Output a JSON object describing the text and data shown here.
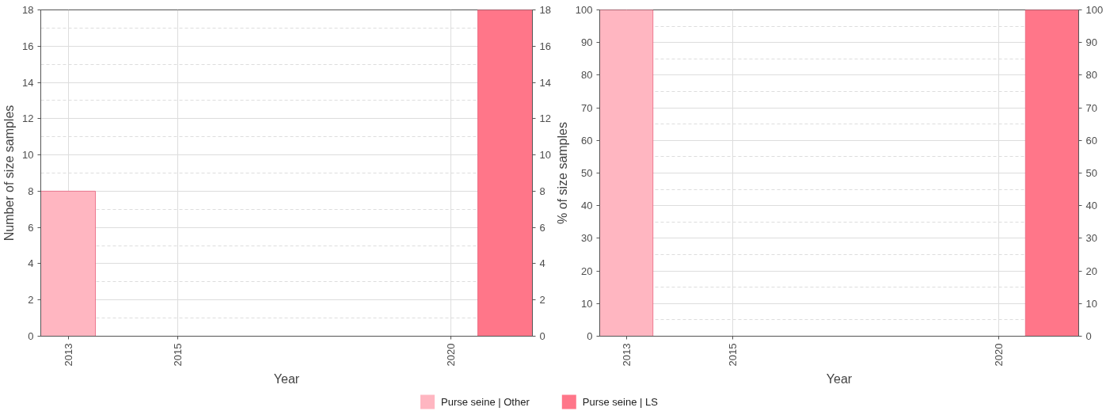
{
  "chart_data": [
    {
      "type": "bar",
      "xlabel": "Year",
      "ylabel": "Number of size samples",
      "categories": [
        "2013",
        null,
        "2015",
        null,
        null,
        null,
        null,
        "2020",
        null
      ],
      "ylim": [
        0,
        18
      ],
      "yticks": [
        0,
        2,
        4,
        6,
        8,
        10,
        12,
        14,
        16,
        18
      ],
      "y2lim": [
        0,
        18
      ],
      "y2ticks": [
        0,
        2,
        4,
        6,
        8,
        10,
        12,
        14,
        16,
        18
      ],
      "grid": true,
      "legend": "bottom",
      "series": [
        {
          "name": "Purse seine | Other",
          "color": "#ffb6c1",
          "values": [
            8,
            null,
            null,
            null,
            null,
            null,
            null,
            null,
            null
          ]
        },
        {
          "name": "Purse seine | LS",
          "color": "#ff7689",
          "values": [
            null,
            null,
            null,
            null,
            null,
            null,
            null,
            null,
            18
          ]
        }
      ]
    },
    {
      "type": "bar",
      "xlabel": "Year",
      "ylabel": "% of size samples",
      "categories": [
        "2013",
        null,
        "2015",
        null,
        null,
        null,
        null,
        "2020",
        null
      ],
      "ylim": [
        0,
        100
      ],
      "yticks": [
        0,
        10,
        20,
        30,
        40,
        50,
        60,
        70,
        80,
        90,
        100
      ],
      "y2lim": [
        0,
        100
      ],
      "y2ticks": [
        0,
        10,
        20,
        30,
        40,
        50,
        60,
        70,
        80,
        90,
        100
      ],
      "grid": true,
      "series": [
        {
          "color": "#ffb6c1",
          "values": [
            100,
            null,
            null,
            null,
            null,
            null,
            null,
            null,
            null
          ]
        },
        {
          "color": "#ff7689",
          "values": [
            null,
            null,
            null,
            null,
            null,
            null,
            null,
            null,
            100
          ]
        }
      ]
    }
  ]
}
